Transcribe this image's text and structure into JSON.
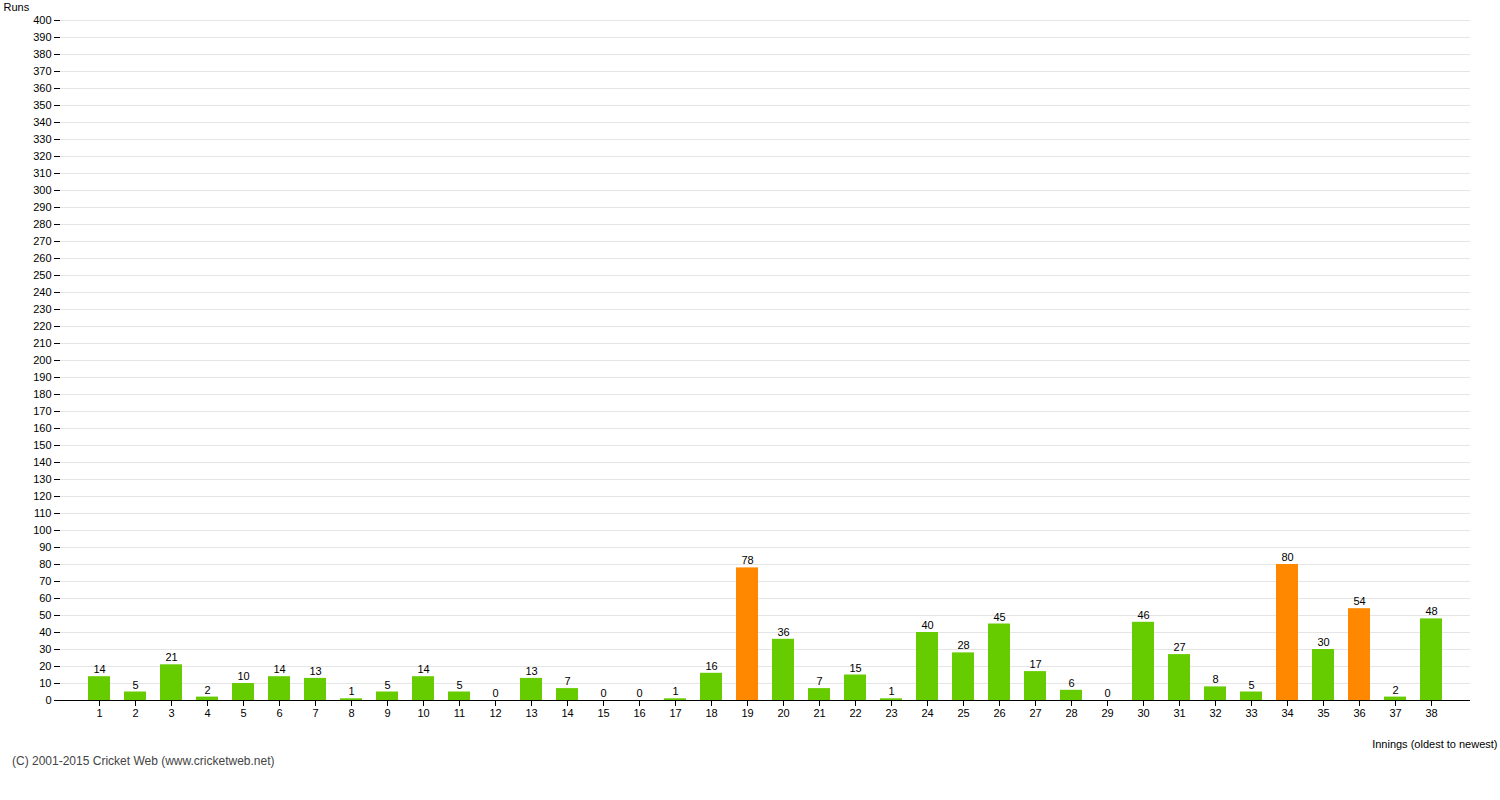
{
  "chart_data": {
    "type": "bar",
    "categories": [
      1,
      2,
      3,
      4,
      5,
      6,
      7,
      8,
      9,
      10,
      11,
      12,
      13,
      14,
      15,
      16,
      17,
      18,
      19,
      20,
      21,
      22,
      23,
      24,
      25,
      26,
      27,
      28,
      29,
      30,
      31,
      32,
      33,
      34,
      35,
      36,
      37,
      38
    ],
    "values": [
      14,
      5,
      21,
      2,
      10,
      14,
      13,
      1,
      5,
      14,
      5,
      0,
      13,
      7,
      0,
      0,
      1,
      16,
      78,
      36,
      7,
      15,
      1,
      40,
      28,
      45,
      17,
      6,
      0,
      46,
      27,
      8,
      5,
      80,
      30,
      54,
      2,
      48
    ],
    "colors": [
      "#66cc00",
      "#66cc00",
      "#66cc00",
      "#66cc00",
      "#66cc00",
      "#66cc00",
      "#66cc00",
      "#66cc00",
      "#66cc00",
      "#66cc00",
      "#66cc00",
      "#66cc00",
      "#66cc00",
      "#66cc00",
      "#66cc00",
      "#66cc00",
      "#66cc00",
      "#66cc00",
      "#ff8800",
      "#66cc00",
      "#66cc00",
      "#66cc00",
      "#66cc00",
      "#66cc00",
      "#66cc00",
      "#66cc00",
      "#66cc00",
      "#66cc00",
      "#66cc00",
      "#66cc00",
      "#66cc00",
      "#66cc00",
      "#66cc00",
      "#ff8800",
      "#66cc00",
      "#ff8800",
      "#66cc00",
      "#66cc00"
    ],
    "ylabel": "Runs",
    "xlabel": "Innings (oldest to newest)",
    "footnote": "(C) 2001-2015 Cricket Web (www.cricketweb.net)",
    "ylim": [
      0,
      400
    ],
    "yticks": [
      0,
      10,
      20,
      30,
      40,
      50,
      60,
      70,
      80,
      90,
      100,
      110,
      120,
      130,
      140,
      150,
      160,
      170,
      180,
      190,
      200,
      210,
      220,
      230,
      240,
      250,
      260,
      270,
      280,
      290,
      300,
      310,
      320,
      330,
      340,
      350,
      360,
      370,
      380,
      390,
      400
    ],
    "grid": true,
    "data_labels": true
  }
}
